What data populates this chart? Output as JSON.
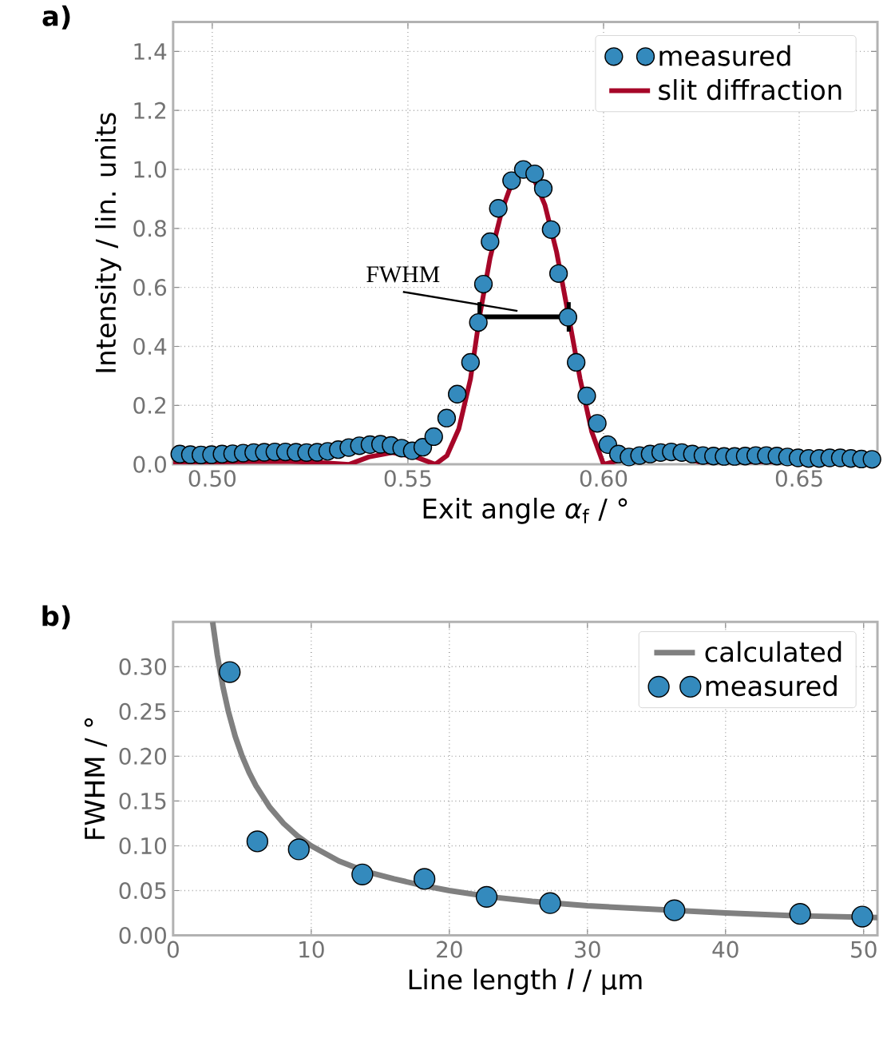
{
  "chart_data": [
    {
      "type": "scatter",
      "title": "a)",
      "xlabel": "Exit angle *α*$_{f}$ / °",
      "ylabel": "Intensity / lin. units",
      "xlim": [
        0.49,
        0.67
      ],
      "ylim": [
        0,
        1.5
      ],
      "xticks": [
        {
          "value": 0.5,
          "label": "0.50"
        },
        {
          "value": 0.55,
          "label": "0.55"
        },
        {
          "value": 0.6,
          "label": "0.60"
        },
        {
          "value": 0.65,
          "label": "0.65"
        }
      ],
      "yticks": [
        {
          "value": 0,
          "label": "0.0"
        },
        {
          "value": 0.2,
          "label": "0.2"
        },
        {
          "value": 0.4,
          "label": "0.4"
        },
        {
          "value": 0.6,
          "label": "0.6"
        },
        {
          "value": 0.8,
          "label": "0.8"
        },
        {
          "value": 1.0,
          "label": "1.0"
        },
        {
          "value": 1.2,
          "label": "1.2"
        },
        {
          "value": 1.4,
          "label": "1.4"
        }
      ],
      "grid": true,
      "legend": "top right",
      "series": [
        {
          "name": "measured",
          "marker": "circle",
          "color": "#348abd",
          "x": [
            0.4917,
            0.4944,
            0.4971,
            0.4998,
            0.5025,
            0.5052,
            0.5079,
            0.5106,
            0.5133,
            0.516,
            0.5187,
            0.5214,
            0.5241,
            0.5268,
            0.5295,
            0.5322,
            0.5349,
            0.5376,
            0.5403,
            0.543,
            0.5457,
            0.5484,
            0.5511,
            0.5538,
            0.5566,
            0.5599,
            0.5626,
            0.566,
            0.568,
            0.5693,
            0.571,
            0.5731,
            0.5765,
            0.5795,
            0.5824,
            0.5846,
            0.5866,
            0.5885,
            0.5909,
            0.593,
            0.5957,
            0.5984,
            0.6011,
            0.6038,
            0.6065,
            0.6092,
            0.6119,
            0.6146,
            0.6173,
            0.62,
            0.6227,
            0.6254,
            0.6281,
            0.6308,
            0.6335,
            0.6362,
            0.6389,
            0.6416,
            0.6443,
            0.647,
            0.6497,
            0.6524,
            0.6551,
            0.6578,
            0.6605,
            0.6632,
            0.6659,
            0.6686
          ],
          "values": [
            0.035,
            0.033,
            0.032,
            0.033,
            0.035,
            0.036,
            0.038,
            0.04,
            0.041,
            0.042,
            0.042,
            0.041,
            0.04,
            0.041,
            0.044,
            0.05,
            0.057,
            0.063,
            0.067,
            0.068,
            0.064,
            0.055,
            0.046,
            0.058,
            0.094,
            0.157,
            0.238,
            0.346,
            0.481,
            0.611,
            0.755,
            0.868,
            0.962,
            1.0,
            0.985,
            0.935,
            0.796,
            0.647,
            0.499,
            0.346,
            0.232,
            0.139,
            0.067,
            0.035,
            0.025,
            0.03,
            0.035,
            0.04,
            0.042,
            0.04,
            0.035,
            0.03,
            0.028,
            0.027,
            0.027,
            0.028,
            0.03,
            0.03,
            0.028,
            0.025,
            0.022,
            0.02,
            0.02,
            0.022,
            0.022,
            0.02,
            0.018,
            0.017
          ]
        },
        {
          "name": "slit diffraction",
          "type": "line",
          "color": "#a60628",
          "x": [
            0.49,
            0.5,
            0.51,
            0.52,
            0.528,
            0.535,
            0.54,
            0.546,
            0.552,
            0.557,
            0.56,
            0.563,
            0.566,
            0.5683,
            0.571,
            0.574,
            0.577,
            0.5797,
            0.582,
            0.585,
            0.588,
            0.5911,
            0.594,
            0.597,
            0.6,
            0.603,
            0.609,
            0.6155,
            0.621,
            0.626,
            0.632,
            0.64,
            0.65
          ],
          "values": [
            0.005,
            0.008,
            0.01,
            0.01,
            0.006,
            0.0,
            0.025,
            0.04,
            0.025,
            0.0,
            0.03,
            0.12,
            0.29,
            0.5,
            0.7,
            0.86,
            0.97,
            1.0,
            0.975,
            0.88,
            0.72,
            0.5,
            0.29,
            0.11,
            0.0,
            0.01,
            0.035,
            0.04,
            0.025,
            0.0,
            0.006,
            0.01,
            0.006
          ]
        },
        {
          "type": "line",
          "color": "#000000",
          "x": [
            0.5683,
            0.5911
          ],
          "values": [
            0.5,
            0.5
          ],
          "errors": [
            0.05,
            0.05
          ]
        }
      ],
      "annotations": [
        {
          "text": "FWHM",
          "x": 0.578,
          "y": 0.52
        }
      ]
    },
    {
      "type": "scatter",
      "title": "b)",
      "xlabel": "Line length *l* / µm",
      "ylabel": "FWHM / °",
      "xlim": [
        0,
        51
      ],
      "ylim": [
        0,
        0.35
      ],
      "xticks": [
        0,
        10,
        20,
        30,
        40,
        50
      ],
      "yticks": [
        {
          "value": 0,
          "label": "0.00"
        },
        {
          "value": 0.05,
          "label": "0.05"
        },
        {
          "value": 0.1,
          "label": "0.10"
        },
        {
          "value": 0.15,
          "label": "0.15"
        },
        {
          "value": 0.2,
          "label": "0.20"
        },
        {
          "value": 0.25,
          "label": "0.25"
        },
        {
          "value": 0.3,
          "label": "0.30"
        }
      ],
      "grid": true,
      "legend": "top right",
      "series": [
        {
          "name": "calculated",
          "type": "line",
          "color": "#808080",
          "x": [
            2.86,
            3.2,
            3.6,
            4,
            4.5,
            5,
            5.5,
            6,
            7,
            8,
            9,
            10,
            12,
            14,
            16,
            18,
            20,
            23,
            26,
            30,
            35,
            40,
            45,
            51
          ],
          "values": [
            0.35,
            0.313,
            0.278,
            0.25,
            0.222,
            0.2,
            0.182,
            0.167,
            0.143,
            0.125,
            0.111,
            0.1,
            0.083,
            0.071,
            0.063,
            0.056,
            0.05,
            0.043,
            0.038,
            0.033,
            0.029,
            0.025,
            0.022,
            0.02
          ]
        },
        {
          "name": "measured",
          "marker": "circle",
          "color": "#348abd",
          "x": [
            4.1,
            6.1,
            9.1,
            13.7,
            18.2,
            22.7,
            27.3,
            36.3,
            45.4,
            49.9
          ],
          "values": [
            0.294,
            0.105,
            0.096,
            0.068,
            0.063,
            0.043,
            0.036,
            0.028,
            0.024,
            0.021
          ]
        }
      ]
    }
  ]
}
